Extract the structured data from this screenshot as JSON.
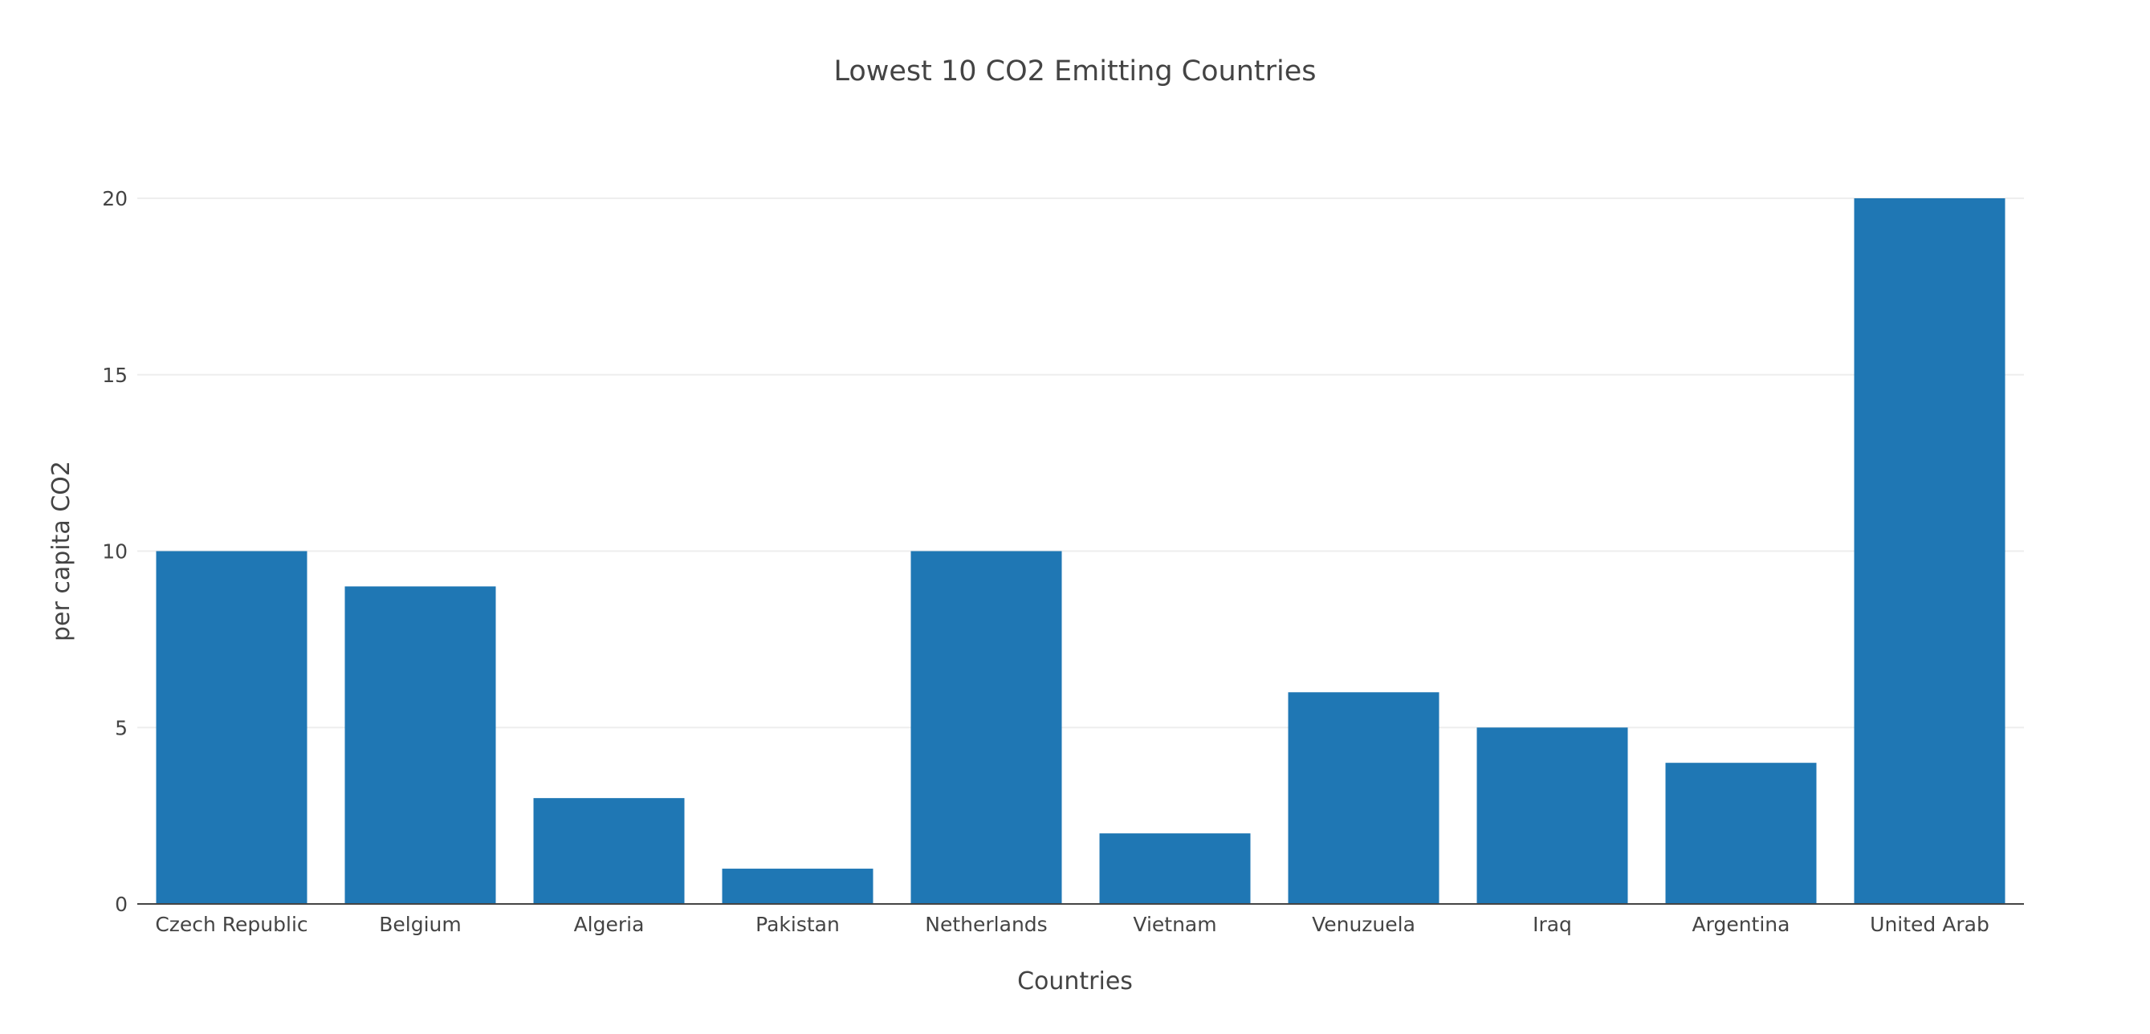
{
  "chart_data": {
    "type": "bar",
    "title": "Lowest 10 CO2 Emitting Countries",
    "xlabel": "Countries",
    "ylabel": "per capita CO2",
    "categories": [
      "Czech Republic",
      "Belgium",
      "Algeria",
      "Pakistan",
      "Netherlands",
      "Vietnam",
      "Venuzuela",
      "Iraq",
      "Argentina",
      "United Arab"
    ],
    "values": [
      10,
      9,
      3,
      1,
      10,
      2,
      6,
      5,
      4,
      20
    ],
    "ylim": [
      0,
      20
    ],
    "yticks": [
      "0",
      "5",
      "10",
      "15",
      "20"
    ],
    "grid": true,
    "legend": "none",
    "colors": {
      "bar": "#1f77b4",
      "grid": "#eeeeee",
      "axis": "#444444",
      "text": "#444444"
    }
  }
}
